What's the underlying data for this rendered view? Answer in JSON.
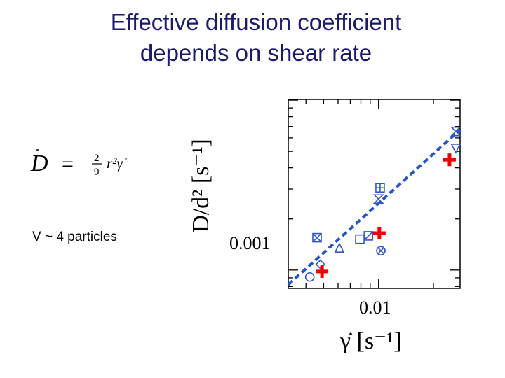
{
  "slide": {
    "title_line1": "Effective diffusion coefficient",
    "title_line2": "depends on shear rate",
    "note": "V ~ 4 particles",
    "formula": {
      "lhs": "D",
      "fraction_num": "2",
      "fraction_den": "9",
      "rhs": "r²γ̇"
    }
  },
  "colors": {
    "title": "#1a1a6e",
    "markers": "#3355cc",
    "fit": "#2255cc",
    "cross": "#ee0000"
  },
  "chart_data": {
    "type": "scatter",
    "xscale": "log",
    "yscale": "log",
    "xlim": [
      0.0032,
      0.028
    ],
    "ylim": [
      0.00078,
      0.0101
    ],
    "x_tick_label": "0.01",
    "y_tick_label": "0.001",
    "xlabel": "γ̇ [s⁻¹]",
    "ylabel": "D/d² [s⁻¹]",
    "grid": false,
    "series": [
      {
        "marker": "circle",
        "points": [
          [
            0.0042,
            0.00091
          ]
        ]
      },
      {
        "marker": "diamond",
        "points": [
          [
            0.0048,
            0.00108
          ]
        ]
      },
      {
        "marker": "boxed-x",
        "points": [
          [
            0.0046,
            0.00155
          ]
        ]
      },
      {
        "marker": "triangle-up",
        "points": [
          [
            0.0061,
            0.00135
          ]
        ]
      },
      {
        "marker": "square",
        "points": [
          [
            0.0079,
            0.00152
          ]
        ]
      },
      {
        "marker": "square-slash",
        "points": [
          [
            0.0088,
            0.00159
          ]
        ]
      },
      {
        "marker": "boxed-plus",
        "points": [
          [
            0.0102,
            0.00305
          ]
        ]
      },
      {
        "marker": "hourglass-triangles",
        "points": [
          [
            0.01,
            0.00262
          ],
          [
            0.0265,
            0.00655
          ]
        ]
      },
      {
        "marker": "circle-x",
        "points": [
          [
            0.0103,
            0.0013
          ]
        ]
      },
      {
        "marker": "triangle-down",
        "points": [
          [
            0.0265,
            0.0052
          ]
        ]
      },
      {
        "marker": "cross",
        "points": [
          [
            0.0049,
            0.00098
          ],
          [
            0.0101,
            0.00165
          ],
          [
            0.0245,
            0.00446
          ]
        ]
      }
    ],
    "fit_line": {
      "style": "dashed",
      "x": [
        0.0032,
        0.028
      ],
      "y": [
        0.00082,
        0.0067
      ]
    }
  }
}
